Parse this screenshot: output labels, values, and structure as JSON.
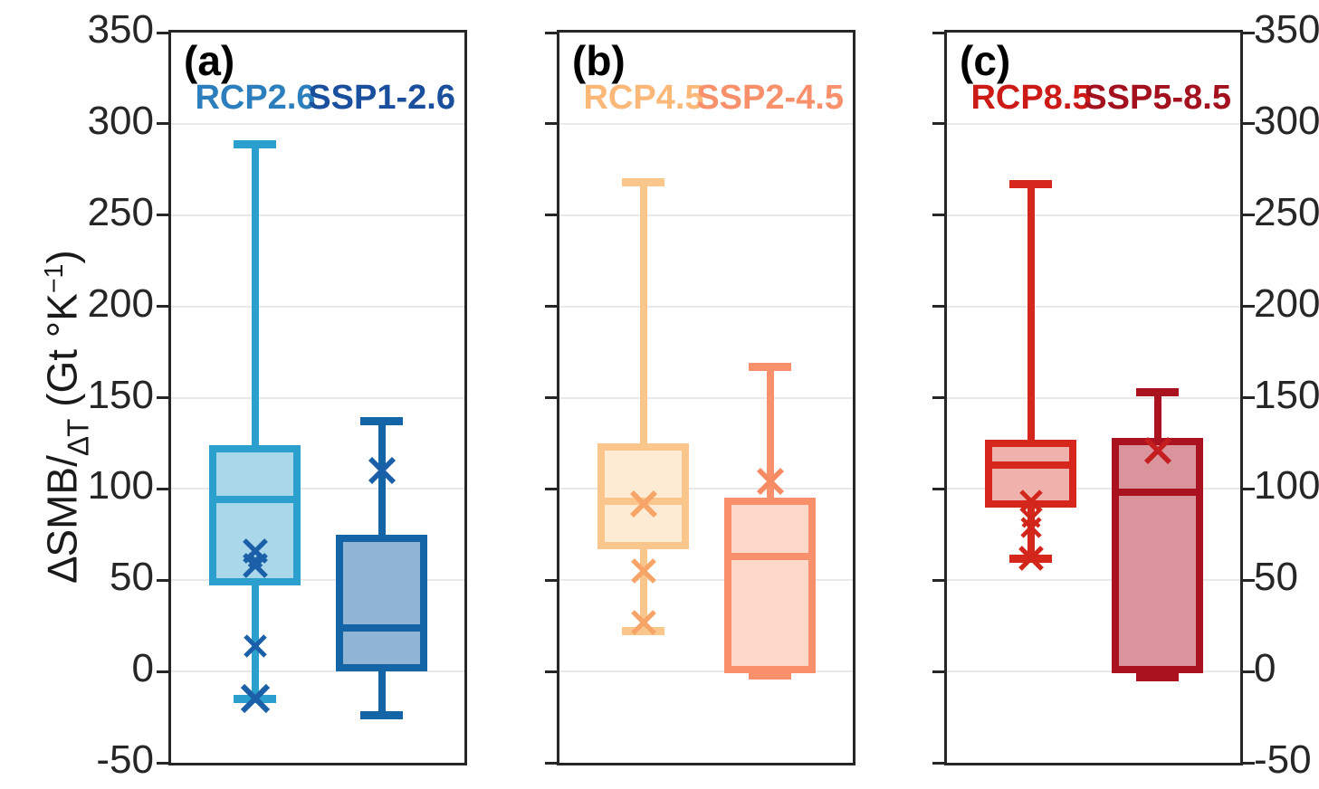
{
  "figure": {
    "background": "#ffffff",
    "ylabel": {
      "main": "∆SMB/",
      "sub": "∆T",
      "unit": " (Gt °K",
      "exp": "−1",
      "close": ")"
    }
  },
  "chart_data": {
    "type": "boxplot",
    "title": "",
    "xlabel": "",
    "ylabel": "ΔSMB/ΔT (Gt °K⁻¹)",
    "ylim": [
      -50,
      350
    ],
    "yticks": [
      350,
      300,
      250,
      200,
      150,
      100,
      50,
      0,
      -50
    ],
    "grid": true,
    "grid_color": "#e9e9e9",
    "border_color": "#262626",
    "tick_label_color": "#262626",
    "panels": [
      {
        "tag": "(a)",
        "groups": [
          {
            "name": "RCP2.6",
            "whisker_high": 289,
            "q3": 124,
            "median": 94,
            "q1": 47,
            "whisker_low": -15,
            "x_markers": [
              66,
              61,
              58,
              14,
              -15
            ],
            "x_marker_sizes": [
              28,
              18,
              28,
              26,
              32
            ],
            "stroke": "#2BA0CE",
            "fill": "#AAD8EA",
            "label_color": "#2C7FBC",
            "marker_color": "#1A5FA8"
          },
          {
            "name": "SSP1-2.6",
            "whisker_high": 137,
            "q3": 75,
            "median": 24,
            "q1": 0,
            "whisker_low": -24,
            "x_markers": [
              110
            ],
            "x_marker_sizes": [
              30
            ],
            "stroke": "#1464A8",
            "fill": "#8FB4D4",
            "label_color": "#1A4F9E",
            "marker_color": "#1A5FA8"
          }
        ]
      },
      {
        "tag": "(b)",
        "groups": [
          {
            "name": "RCP4.5",
            "whisker_high": 268,
            "q3": 125,
            "median": 93,
            "q1": 67,
            "whisker_low": 22,
            "x_markers": [
              92,
              55,
              27
            ],
            "x_marker_sizes": [
              30,
              28,
              28
            ],
            "stroke": "#FAC68C",
            "fill": "#FDEBD4",
            "label_color": "#FBB878",
            "marker_color": "#F7A468"
          },
          {
            "name": "SSP2-4.5",
            "whisker_high": 167,
            "q3": 95,
            "median": 63,
            "q1": -1,
            "whisker_low": -2,
            "x_markers": [
              104
            ],
            "x_marker_sizes": [
              30
            ],
            "stroke": "#F8906C",
            "fill": "#FCD9C8",
            "label_color": "#F8906C",
            "marker_color": "#F68A63"
          }
        ]
      },
      {
        "tag": "(c)",
        "groups": [
          {
            "name": "RCP8.5",
            "whisker_high": 267,
            "q3": 127,
            "median": 113,
            "q1": 90,
            "whisker_low": 62,
            "x_markers": [
              93,
              84,
              79,
              62
            ],
            "x_marker_sizes": [
              26,
              22,
              24,
              28
            ],
            "stroke": "#D5271C",
            "fill": "#F0B2AC",
            "label_color": "#CC1A16",
            "marker_color": "#D2261C"
          },
          {
            "name": "SSP5-8.5",
            "whisker_high": 153,
            "q3": 128,
            "median": 98,
            "q1": -1,
            "whisker_low": -3,
            "x_markers": [
              121
            ],
            "x_marker_sizes": [
              30
            ],
            "stroke": "#AB1220",
            "fill": "#D9949C",
            "label_color": "#A4111E",
            "marker_color": "#C51E20"
          }
        ]
      }
    ]
  }
}
